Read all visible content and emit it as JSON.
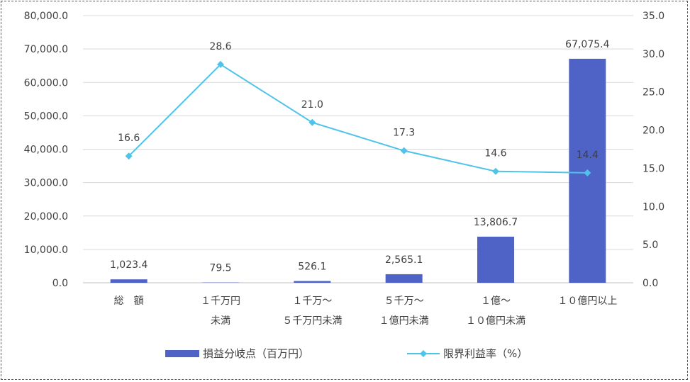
{
  "chart_data": {
    "type": "bar",
    "categories": [
      [
        "総　額",
        ""
      ],
      [
        "１千万円",
        "未満"
      ],
      [
        "１千万～",
        "５千万円未満"
      ],
      [
        "５千万～",
        "１億円未満"
      ],
      [
        "１億～",
        "１０億円未満"
      ],
      [
        "１０億円以上",
        ""
      ]
    ],
    "series": [
      {
        "name": "損益分岐点（百万円）",
        "type": "bar",
        "axis": "left",
        "color": "#4e63c5",
        "values": [
          1023.4,
          79.5,
          526.1,
          2565.1,
          13806.7,
          67075.4
        ],
        "labels": [
          "1,023.4",
          "79.5",
          "526.1",
          "2,565.1",
          "13,806.7",
          "67,075.4"
        ]
      },
      {
        "name": "限界利益率（%）",
        "type": "line",
        "axis": "right",
        "color": "#4fc3e8",
        "values": [
          16.6,
          28.6,
          21.0,
          17.3,
          14.6,
          14.4
        ],
        "labels": [
          "16.6",
          "28.6",
          "21.0",
          "17.3",
          "14.6",
          "14.4"
        ]
      }
    ],
    "y_left": {
      "range": [
        0,
        80000
      ],
      "ticks": [
        0,
        10000,
        20000,
        30000,
        40000,
        50000,
        60000,
        70000,
        80000
      ],
      "tick_labels": [
        "0.0",
        "10,000.0",
        "20,000.0",
        "30,000.0",
        "40,000.0",
        "50,000.0",
        "60,000.0",
        "70,000.0",
        "80,000.0"
      ]
    },
    "y_right": {
      "range": [
        0,
        35
      ],
      "ticks": [
        0,
        5,
        10,
        15,
        20,
        25,
        30,
        35
      ],
      "tick_labels": [
        "0.0",
        "5.0",
        "10.0",
        "15.0",
        "20.0",
        "25.0",
        "30.0",
        "35.0"
      ]
    },
    "grid": true,
    "legend_position": "bottom",
    "legend": [
      "損益分岐点（百万円）",
      "限界利益率（%）"
    ]
  }
}
